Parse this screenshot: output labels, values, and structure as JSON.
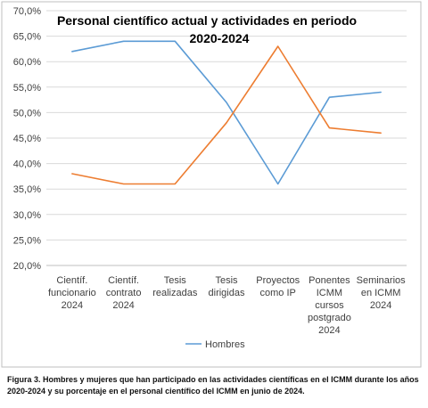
{
  "chart_data": {
    "type": "line",
    "title_lines": [
      "Personal científico actual y actividades en periodo",
      "2020-2024"
    ],
    "categories": [
      [
        "Científ.",
        "funcionario",
        "2024"
      ],
      [
        "Científ.",
        "contrato",
        "2024"
      ],
      [
        "Tesis",
        "realizadas"
      ],
      [
        "Tesis",
        "dirigidas"
      ],
      [
        "Proyectos",
        "como IP"
      ],
      [
        "Ponentes",
        "ICMM",
        "cursos",
        "postgrado",
        "2024"
      ],
      [
        "Seminarios",
        "en ICMM",
        "2024"
      ]
    ],
    "series": [
      {
        "name": "Hombres",
        "color": "#5b9bd5",
        "values": [
          62,
          64,
          64,
          52,
          36,
          53,
          54
        ]
      },
      {
        "color": "#ed7d31",
        "values": [
          38,
          36,
          36,
          48,
          63,
          47,
          46
        ]
      }
    ],
    "ylim": [
      20,
      70
    ],
    "ytick_step": 5,
    "ytick_labels": [
      "20,0%",
      "25,0%",
      "30,0%",
      "35,0%",
      "40,0%",
      "45,0%",
      "50,0%",
      "55,0%",
      "60,0%",
      "65,0%",
      "70,0%"
    ],
    "grid": "horizontal",
    "legend_position": "bottom"
  },
  "caption": "Figura 3. Hombres y mujeres que han participado en las actividades científicas en el ICMM durante los años 2020-2024 y su porcentaje en el personal científico del ICMM en junio de 2024."
}
